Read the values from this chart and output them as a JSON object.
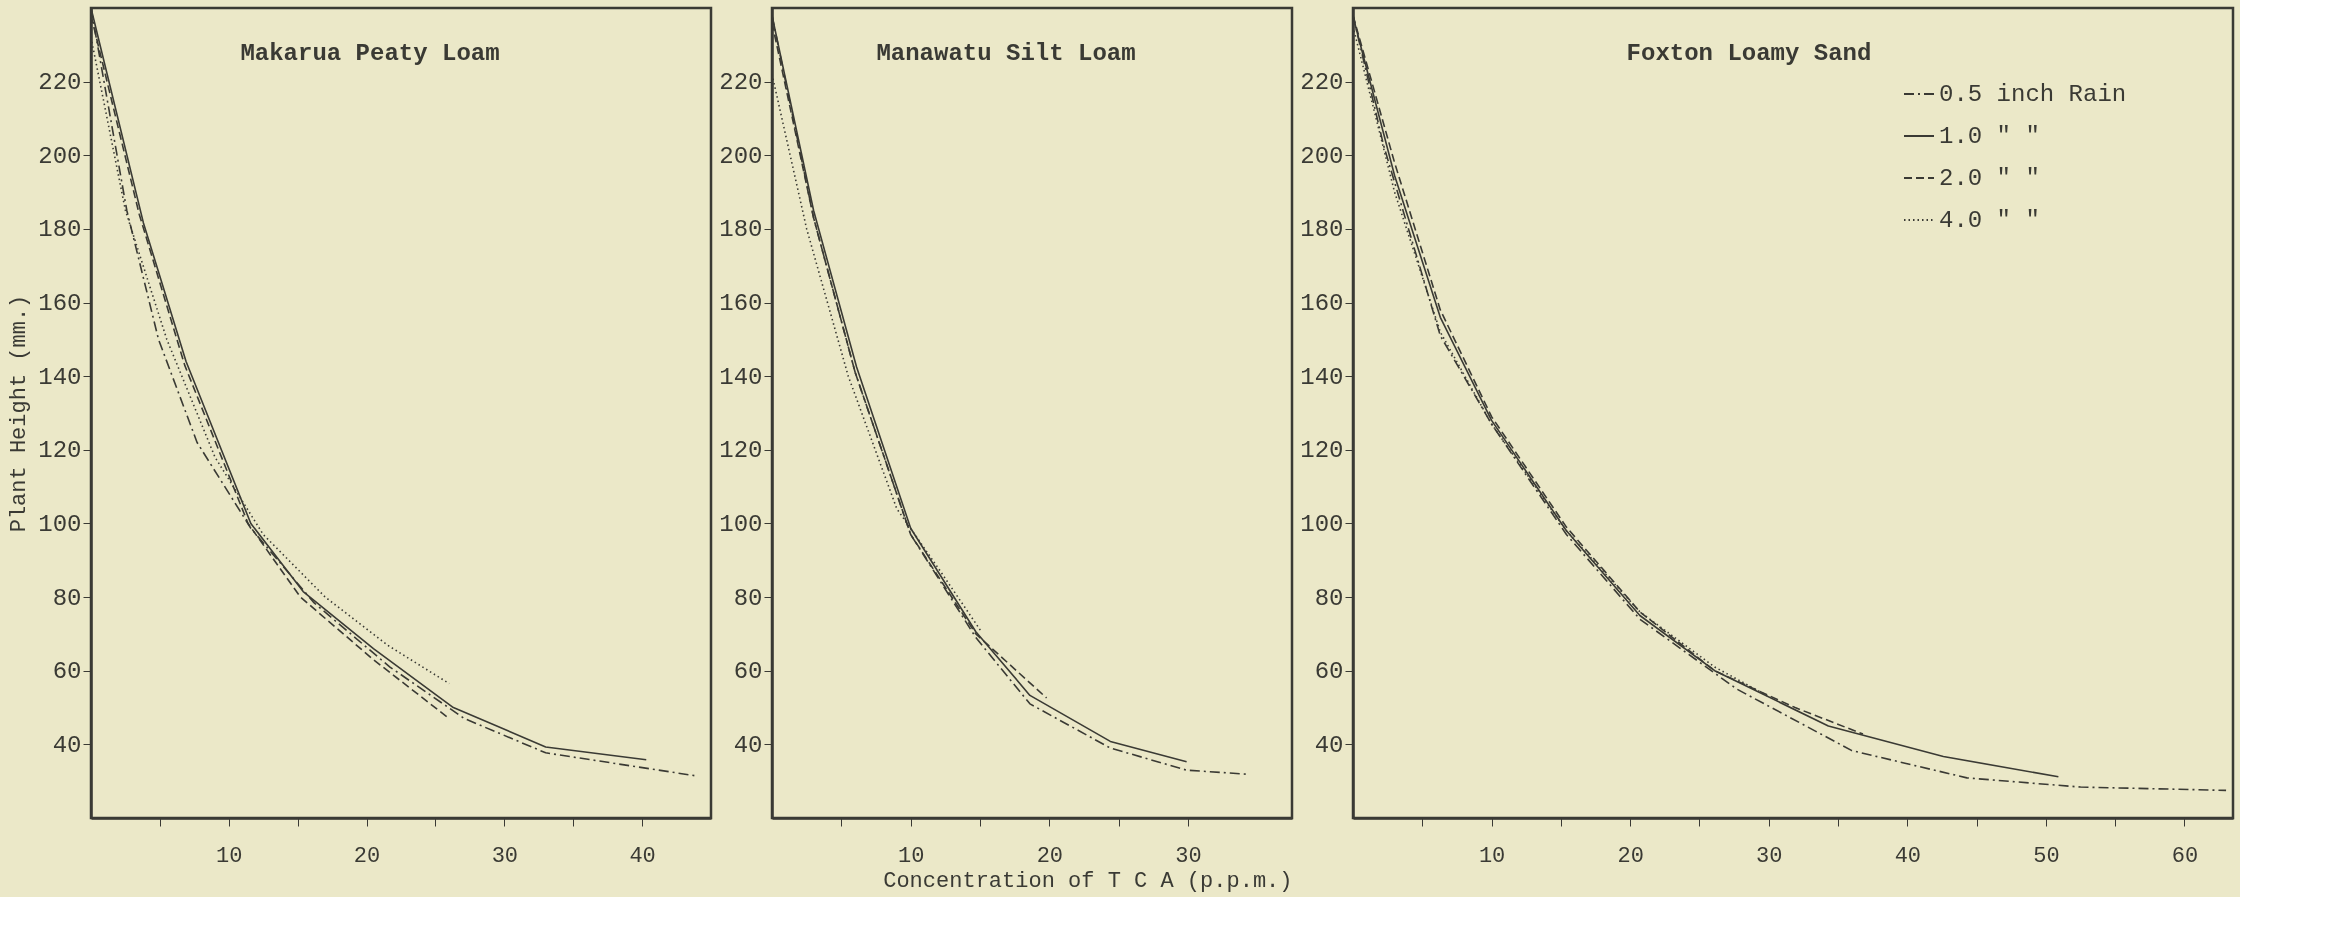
{
  "chart_data": [
    {
      "type": "line",
      "title": "Makarua Peaty Loam",
      "ylabel": "Plant Height (mm.)",
      "xlim": [
        0,
        45
      ],
      "ylim": [
        20,
        240
      ],
      "xticks": [
        {
          "value": 5,
          "label": null
        },
        10,
        {
          "value": 15,
          "label": null
        },
        20,
        {
          "value": 25,
          "label": null
        },
        30,
        {
          "value": 35,
          "label": null
        },
        40
      ],
      "yticks": [
        40,
        60,
        80,
        100,
        120,
        140,
        160,
        180,
        200,
        220
      ],
      "grid": false,
      "legend": false,
      "series": [
        {
          "color": "#3a3a34",
          "line_style": "dashdot",
          "x": [
            0,
            2.6,
            4.9,
            7.7,
            11.6,
            16.2,
            21.7,
            27.1,
            33,
            44
          ],
          "values": [
            240,
            185,
            150,
            122,
            98.7,
            78.4,
            61,
            47,
            37.7,
            31.4
          ]
        },
        {
          "color": "#3a3a34",
          "line_style": "solid",
          "x": [
            0,
            3.8,
            6.9,
            11.6,
            15.4,
            20.5,
            26.3,
            33,
            40.3
          ],
          "values": [
            240,
            181.7,
            144,
            100,
            81.5,
            66,
            50,
            39.3,
            35.8
          ]
        },
        {
          "color": "#3a3a34",
          "line_style": "dashed",
          "x": [
            0,
            3.5,
            6.8,
            11.4,
            15.2,
            20.5,
            26
          ],
          "values": [
            238,
            184,
            143,
            100,
            80,
            63,
            47
          ]
        },
        {
          "color": "#3a3a34",
          "line_style": "dotted",
          "x": [
            0,
            2.5,
            5.5,
            9,
            12.5,
            17,
            21.5,
            26
          ],
          "values": [
            232,
            185,
            150,
            118,
            97,
            80,
            67,
            56.5
          ]
        }
      ]
    },
    {
      "type": "line",
      "title": "Manawatu Silt Loam",
      "xlabel": "Concentration of T C A (p.p.m.)",
      "xlim": [
        0,
        37.5
      ],
      "ylim": [
        20,
        240
      ],
      "xticks": [
        {
          "value": 5,
          "label": null
        },
        10,
        {
          "value": 15,
          "label": null
        },
        20,
        {
          "value": 25,
          "label": null
        },
        30
      ],
      "yticks": [
        40,
        60,
        80,
        100,
        120,
        140,
        160,
        180,
        200,
        220
      ],
      "grid": false,
      "legend": false,
      "series": [
        {
          "color": "#3a3a34",
          "line_style": "dashdot",
          "x": [
            0,
            3,
            6,
            10,
            14.7,
            18.6,
            24.4,
            29.9,
            34.2
          ],
          "values": [
            238,
            183,
            141,
            97,
            69,
            51,
            39,
            33,
            31.9
          ]
        },
        {
          "color": "#3a3a34",
          "line_style": "solid",
          "x": [
            0,
            3,
            6.1,
            10,
            14.7,
            18.6,
            24.4,
            29.9
          ],
          "values": [
            238,
            185,
            142.5,
            98.7,
            70.6,
            53.3,
            40.8,
            35.3
          ]
        },
        {
          "color": "#3a3a34",
          "line_style": "dashed",
          "x": [
            0,
            3,
            6,
            10,
            14.7,
            19.8
          ],
          "values": [
            236,
            183,
            141,
            97,
            70,
            52.6
          ]
        },
        {
          "color": "#3a3a34",
          "line_style": "dotted",
          "x": [
            0,
            2.5,
            5.5,
            9,
            12,
            15.1
          ],
          "values": [
            222,
            180,
            140,
            104,
            87.8,
            70.6
          ]
        }
      ]
    },
    {
      "type": "line",
      "title": "Foxton Loamy Sand",
      "xlim": [
        0,
        63.5
      ],
      "ylim": [
        20,
        240
      ],
      "xticks": [
        {
          "value": 5,
          "label": null
        },
        10,
        {
          "value": 15,
          "label": null
        },
        20,
        {
          "value": 25,
          "label": null
        },
        30,
        {
          "value": 35,
          "label": null
        },
        40,
        {
          "value": 45,
          "label": null
        },
        50,
        {
          "value": 55,
          "label": null
        },
        60
      ],
      "yticks": [
        40,
        60,
        80,
        100,
        120,
        140,
        160,
        180,
        200,
        220
      ],
      "grid": false,
      "legend": "top right",
      "series": [
        {
          "name": "0.5 inch Rain",
          "color": "#3a3a34",
          "line_style": "dashdot",
          "x": [
            0,
            2.2,
            6.3,
            10,
            15.4,
            20.7,
            27.7,
            36,
            44.3,
            52.5,
            63
          ],
          "values": [
            238,
            202.8,
            151,
            127,
            97,
            74,
            55,
            38.3,
            30.9,
            28.4,
            27.5
          ]
        },
        {
          "name": "1.0   \"    \"",
          "color": "#3a3a34",
          "line_style": "solid",
          "x": [
            0,
            3,
            6.3,
            10,
            15.4,
            20.7,
            26.1,
            34.3,
            42.6,
            50.9
          ],
          "values": [
            237.7,
            194.5,
            156,
            128,
            98,
            75,
            60,
            45,
            36.7,
            31.2
          ]
        },
        {
          "name": "2.0   \"    \"",
          "color": "#3a3a34",
          "line_style": "dashed",
          "x": [
            0,
            3,
            6.3,
            10,
            15.4,
            20.7,
            26.1,
            31.9,
            36.8
          ],
          "values": [
            238,
            198,
            158,
            129,
            99,
            76,
            60,
            50,
            42.8
          ]
        },
        {
          "name": "4.0   \"    \"",
          "color": "#3a3a34",
          "line_style": "dotted",
          "x": [
            0,
            3,
            6.3,
            10,
            15.4,
            20.7,
            26.1,
            30
          ],
          "values": [
            235,
            190,
            152,
            127,
            98,
            76,
            61,
            53
          ]
        }
      ]
    }
  ]
}
